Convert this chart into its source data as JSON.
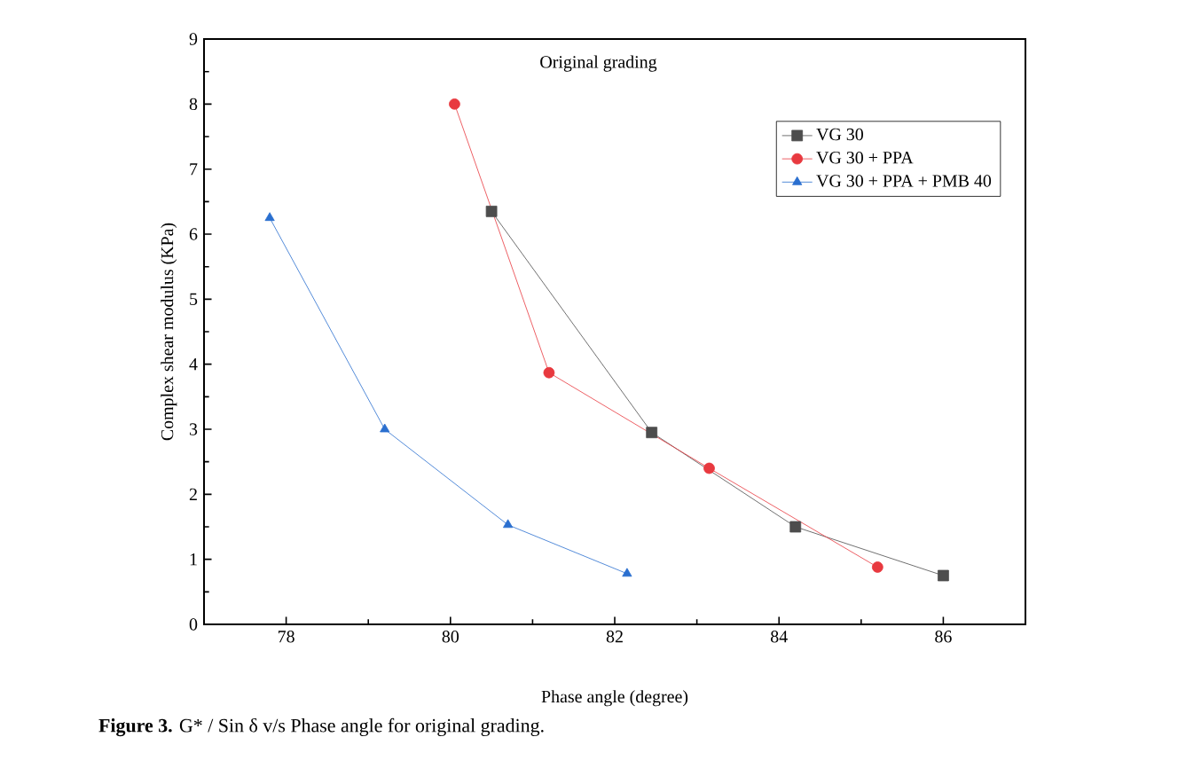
{
  "chart_data": {
    "type": "line",
    "title": "Original grading",
    "xlabel": "Phase angle (degree)",
    "ylabel": "Complex shear modulus (KPa)",
    "annotations": [
      "**Figure 3.** G* / Sin δ v/s Phase angle for original grading."
    ],
    "xlim": [
      77,
      87
    ],
    "ylim": [
      0,
      9
    ],
    "xticks": [
      78,
      80,
      82,
      84,
      86
    ],
    "yticks": [
      0,
      1,
      2,
      3,
      4,
      5,
      6,
      7,
      8,
      9
    ],
    "grid": false,
    "legend": "top right",
    "series": [
      {
        "name": "VG 30",
        "color": "#4d4d4d",
        "marker": "square",
        "x": [
          80.5,
          82.45,
          84.2,
          86.0
        ],
        "values": [
          6.35,
          2.95,
          1.5,
          0.75
        ]
      },
      {
        "name": "VG 30 + PPA",
        "color": "#e8393f",
        "marker": "circle",
        "x": [
          80.05,
          81.2,
          83.15,
          85.2
        ],
        "values": [
          8.0,
          3.87,
          2.4,
          0.88
        ]
      },
      {
        "name": "VG 30 + PPA + PMB 40",
        "color": "#2a6fcf",
        "marker": "triangle",
        "x": [
          77.8,
          79.2,
          80.7,
          82.15
        ],
        "values": [
          6.25,
          3.0,
          1.53,
          0.78
        ]
      }
    ]
  }
}
